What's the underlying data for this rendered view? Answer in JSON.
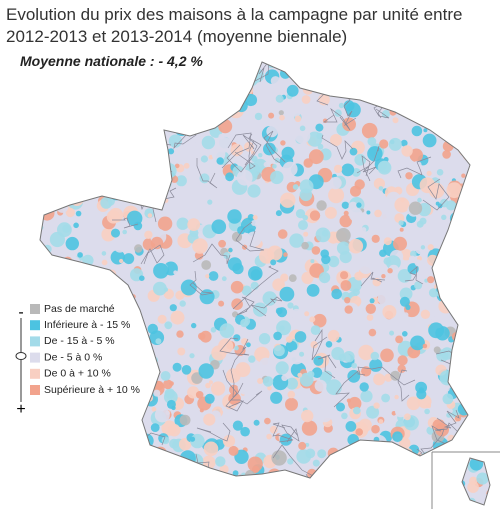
{
  "title_lines": [
    "Evolution du prix des maisons à la campagne par unité entre",
    "2012-2013 et 2013-2014 (moyenne biennale)"
  ],
  "subtitle": "Moyenne nationale : - 4,2 %",
  "legend": {
    "items": [
      {
        "label": "Pas de marché",
        "color": "#b9b9b9"
      },
      {
        "label": "Inférieure à - 15 %",
        "color": "#4cc3e1"
      },
      {
        "label": "De - 15 à - 5 %",
        "color": "#a3dbe9"
      },
      {
        "label": "De - 5 à 0 %",
        "color": "#dcdcec"
      },
      {
        "label": "De 0 à + 10 %",
        "color": "#f8cfc2"
      },
      {
        "label": "Supérieure à + 10 %",
        "color": "#f2a38d"
      }
    ],
    "scale_low": "-",
    "scale_high": "+"
  }
}
